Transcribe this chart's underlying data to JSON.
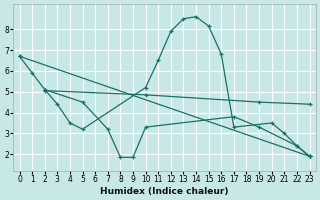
{
  "title": "",
  "xlabel": "Humidex (Indice chaleur)",
  "ylabel": "",
  "bg_color": "#c8e8e8",
  "grid_color": "#ffffff",
  "line_color": "#1a7068",
  "xlim": [
    -0.5,
    23.5
  ],
  "ylim": [
    1.2,
    9.2
  ],
  "xticks": [
    0,
    1,
    2,
    3,
    4,
    5,
    6,
    7,
    8,
    9,
    10,
    11,
    12,
    13,
    14,
    15,
    16,
    17,
    18,
    19,
    20,
    21,
    22,
    23
  ],
  "yticks": [
    2,
    3,
    4,
    5,
    6,
    7,
    8
  ],
  "lines": [
    {
      "x": [
        0,
        1,
        2,
        3,
        4,
        5,
        10,
        11,
        12,
        13,
        14,
        15,
        16,
        17,
        20,
        21,
        22,
        23
      ],
      "y": [
        6.7,
        5.9,
        5.1,
        4.4,
        3.5,
        3.2,
        5.2,
        6.5,
        7.9,
        8.5,
        8.6,
        8.15,
        6.8,
        3.3,
        3.5,
        3.0,
        2.4,
        1.9
      ]
    },
    {
      "x": [
        2,
        10,
        19,
        23
      ],
      "y": [
        5.05,
        4.85,
        4.5,
        4.4
      ]
    },
    {
      "x": [
        0,
        23
      ],
      "y": [
        6.7,
        1.9
      ]
    },
    {
      "x": [
        2,
        5,
        7,
        8,
        9,
        10,
        17,
        19,
        22,
        23
      ],
      "y": [
        5.1,
        4.5,
        3.2,
        1.85,
        1.85,
        3.3,
        3.8,
        3.3,
        2.4,
        1.9
      ]
    }
  ]
}
